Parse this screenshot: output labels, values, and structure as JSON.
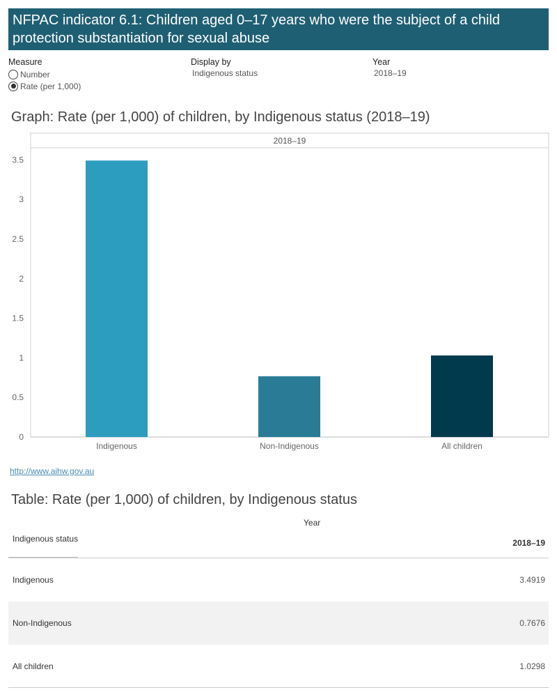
{
  "header": {
    "title": "NFPAC indicator 6.1: Children aged 0–17 years who were the subject of a child protection substantiation for sexual abuse"
  },
  "filters": {
    "measure": {
      "label": "Measure",
      "options": [
        "Number",
        "Rate (per 1,000)"
      ],
      "selected": "Rate (per 1,000)"
    },
    "display_by": {
      "label": "Display by",
      "value": "Indigenous status"
    },
    "year": {
      "label": "Year",
      "value": "2018–19"
    }
  },
  "graph_title": "Graph: Rate (per 1,000) of children, by Indigenous status (2018–19)",
  "chart_data": {
    "type": "bar",
    "column_header": "2018–19",
    "categories": [
      "Indigenous",
      "Non-Indigenous",
      "All children"
    ],
    "values": [
      3.4919,
      0.7676,
      1.0298
    ],
    "colors": [
      "#2d9dbf",
      "#2a7c96",
      "#003a4c"
    ],
    "ylim": [
      0,
      3.6
    ],
    "yticks": [
      0,
      0.5,
      1,
      1.5,
      2,
      2.5,
      3,
      3.5
    ],
    "ytick_labels": [
      "0",
      "0.5",
      "1",
      "1.5",
      "2",
      "2.5",
      "3",
      "3.5"
    ],
    "grid": false
  },
  "link": "http://www.aihw.gov.au",
  "table": {
    "title": "Table: Rate (per 1,000) of children, by Indigenous status",
    "year_header": "Year",
    "row_header": "Indigenous status",
    "col_header": "2018–19",
    "rows": [
      {
        "label": "Indigenous",
        "value": "3.4919"
      },
      {
        "label": "Non-Indigenous",
        "value": "0.7676"
      },
      {
        "label": "All children",
        "value": "1.0298"
      }
    ]
  }
}
